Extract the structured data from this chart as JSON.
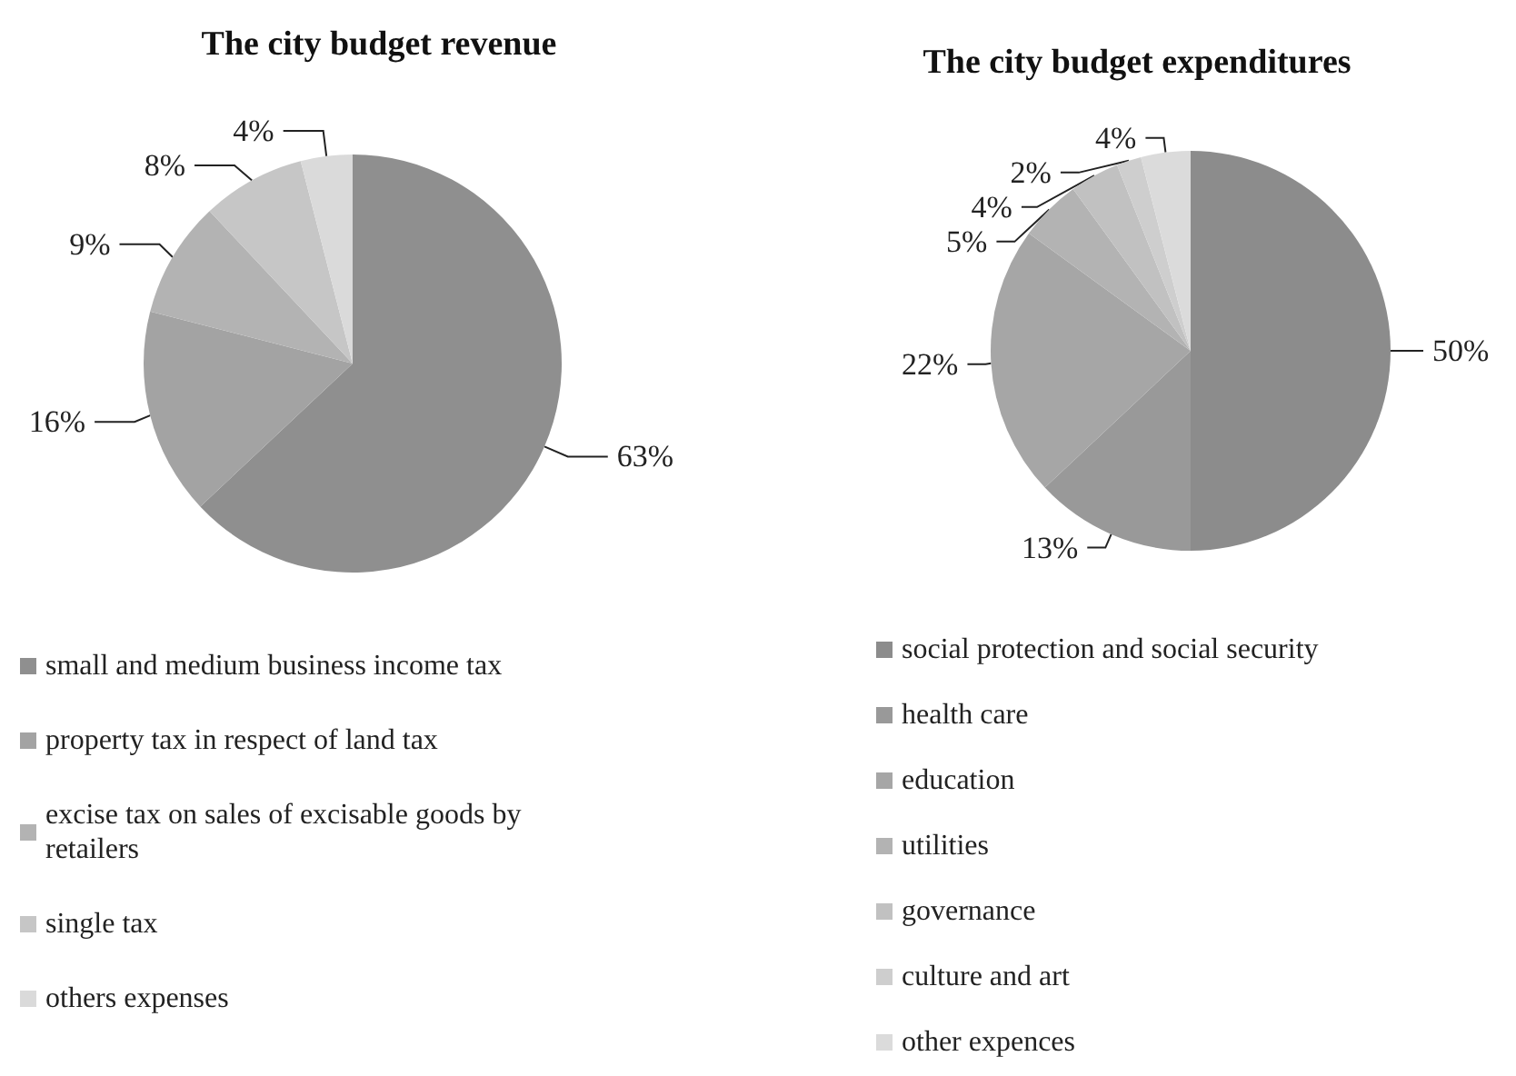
{
  "chart_data": [
    {
      "type": "pie",
      "title": "The city budget revenue",
      "categories": [
        "small and medium business income tax",
        "property tax in respect of land tax",
        "excise tax on sales of excisable goods by retailers",
        "single tax",
        "others expenses"
      ],
      "values": [
        63,
        16,
        9,
        8,
        4
      ],
      "value_labels": [
        "63%",
        "16%",
        "9%",
        "8%",
        "4%"
      ],
      "colors": [
        "#8f8f8f",
        "#a3a3a3",
        "#b3b3b3",
        "#c6c6c6",
        "#dadada"
      ],
      "legend": "bottom left"
    },
    {
      "type": "pie",
      "title": "The city budget expenditures",
      "categories": [
        "social protection and social security",
        "health care",
        "education",
        "utilities",
        "governance",
        "culture and art",
        "other expences"
      ],
      "values": [
        50,
        13,
        22,
        5,
        4,
        2,
        4
      ],
      "value_labels": [
        "50%",
        "13%",
        "22%",
        "5%",
        "4%",
        "2%",
        "4%"
      ],
      "colors": [
        "#8c8c8c",
        "#999999",
        "#a6a6a6",
        "#b3b3b3",
        "#c1c1c1",
        "#cecece",
        "#dbdbdb"
      ],
      "legend": "bottom left"
    }
  ]
}
